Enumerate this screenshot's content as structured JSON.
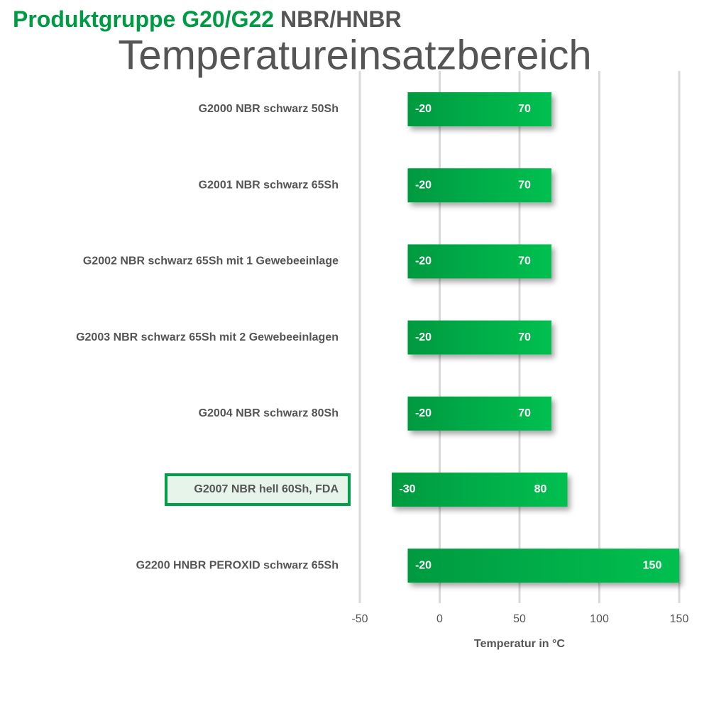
{
  "chart_data": {
    "type": "range-bar",
    "title": "Produktgruppe G20/G22",
    "title_suffix": "NBR/HNBR",
    "subtitle": "Temperatureinsatzbereich",
    "x_label": "Temperatur in °C",
    "categories": [
      "G2000 NBR schwarz 50Sh",
      "G2001 NBR schwarz 65Sh",
      "G2002 NBR schwarz 65Sh mit 1 Gewebeeinlage",
      "G2003 NBR schwarz 65Sh mit 2 Gewebeeinlagen",
      "G2004 NBR schwarz 80Sh",
      "G2007 NBR hell 60Sh, FDA",
      "G2200 HNBR PEROXID schwarz 65Sh"
    ],
    "low": [
      -20,
      -20,
      -20,
      -20,
      -20,
      -30,
      -20
    ],
    "high": [
      70,
      70,
      70,
      70,
      70,
      80,
      150
    ],
    "highlight_index": 5,
    "color": "#00b04a",
    "xlim": [
      -50,
      150
    ],
    "xticks": [
      -50,
      0,
      50,
      100,
      150
    ],
    "grid": true
  }
}
